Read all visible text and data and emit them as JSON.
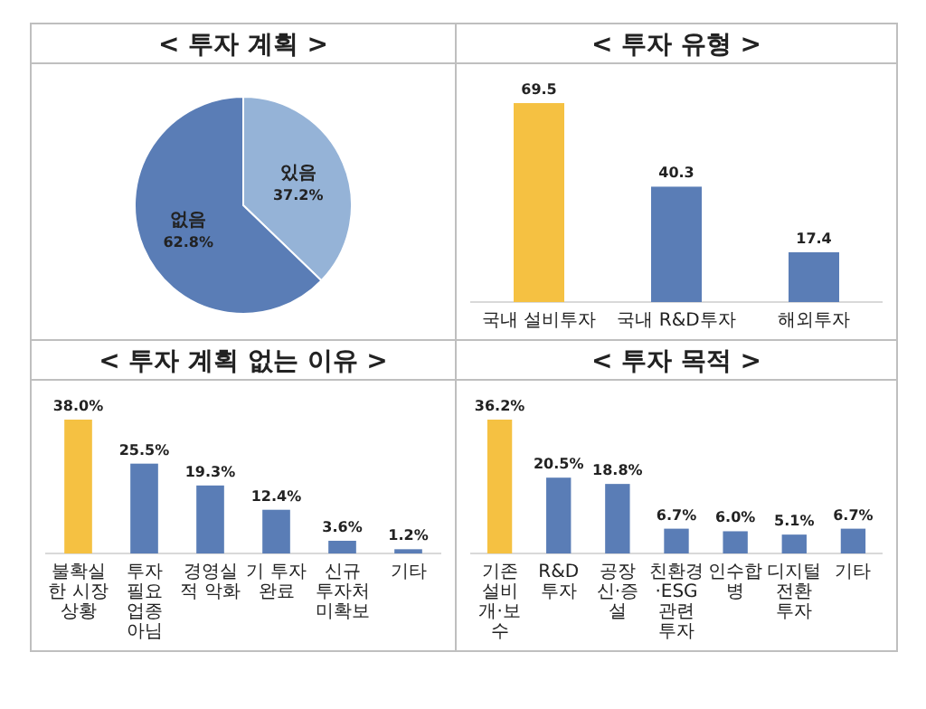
{
  "chart_data": [
    {
      "type": "pie",
      "title": "< 투자 계획 >",
      "categories": [
        "있음",
        "없음"
      ],
      "values": [
        37.2,
        62.8
      ],
      "colors": [
        "#95b3d7",
        "#5a7db6"
      ],
      "value_labels": [
        "37.2%",
        "62.8%"
      ]
    },
    {
      "type": "bar",
      "title": "< 투자 유형 >",
      "categories": [
        "국내 설비투자",
        "국내 R&D투자",
        "해외투자"
      ],
      "values": [
        69.5,
        40.3,
        17.4
      ],
      "colors": [
        "#f5c142",
        "#5a7db6",
        "#5a7db6"
      ],
      "data_labels": true
    },
    {
      "type": "bar",
      "title": "< 투자 계획 없는 이유 >",
      "categories": [
        "불확실한 시장 상황",
        "투자 필요 업종 아님",
        "경영실적 악화",
        "기 투자 완료",
        "신규 투자처 미확보",
        "기타"
      ],
      "values": [
        38.0,
        25.5,
        19.3,
        12.4,
        3.6,
        1.2
      ],
      "colors": [
        "#f5c142",
        "#5a7db6",
        "#5a7db6",
        "#5a7db6",
        "#5a7db6",
        "#5a7db6"
      ],
      "value_labels": [
        "38.0%",
        "25.5%",
        "19.3%",
        "12.4%",
        "3.6%",
        "1.2%"
      ]
    },
    {
      "type": "bar",
      "title": "< 투자 목적 >",
      "categories": [
        "기존 설비 개·보수",
        "R&D 투자",
        "공장 신·증설",
        "친환경·ESG 관련 투자",
        "인수합병",
        "디지털전환 투자",
        "기타"
      ],
      "values": [
        36.2,
        20.5,
        18.8,
        6.7,
        6.0,
        5.1,
        6.7
      ],
      "colors": [
        "#f5c142",
        "#5a7db6",
        "#5a7db6",
        "#5a7db6",
        "#5a7db6",
        "#5a7db6",
        "#5a7db6"
      ],
      "value_labels": [
        "36.2%",
        "20.5%",
        "18.8%",
        "6.7%",
        "6.0%",
        "5.1%",
        "6.7%"
      ]
    }
  ]
}
